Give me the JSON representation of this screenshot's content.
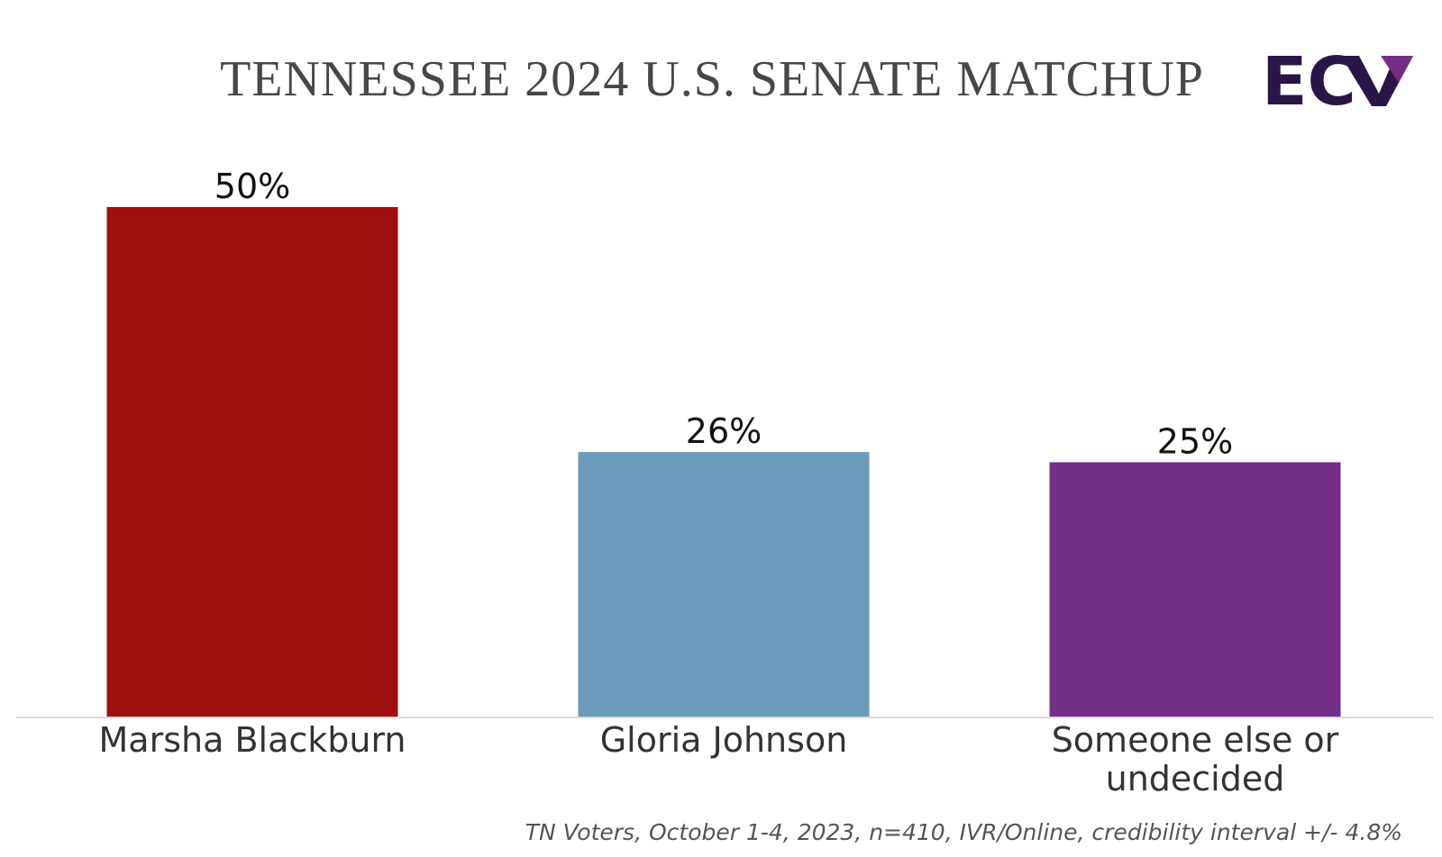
{
  "chart_data": {
    "type": "bar",
    "title": "TENNESSEE 2024 U.S. SENATE MATCHUP",
    "categories": [
      "Marsha Blackburn",
      "Gloria Johnson",
      "Someone else or undecided"
    ],
    "category_lines": [
      [
        "Marsha Blackburn"
      ],
      [
        "Gloria Johnson"
      ],
      [
        "Someone else or",
        "undecided"
      ]
    ],
    "values": [
      50,
      26,
      25
    ],
    "value_labels": [
      "50%",
      "26%",
      "25%"
    ],
    "colors": [
      "#a0100e",
      "#6b9aba",
      "#742e86"
    ],
    "ylim": [
      0,
      50
    ],
    "grid": false,
    "xlabel": "",
    "ylabel": ""
  },
  "footnote": "TN Voters, October 1-4, 2023, n=410, IVR/Online, credibility interval +/- 4.8%",
  "logo": {
    "text": "EC",
    "icon": "checkmark-icon",
    "colors": [
      "#2a1646",
      "#742e86"
    ]
  }
}
